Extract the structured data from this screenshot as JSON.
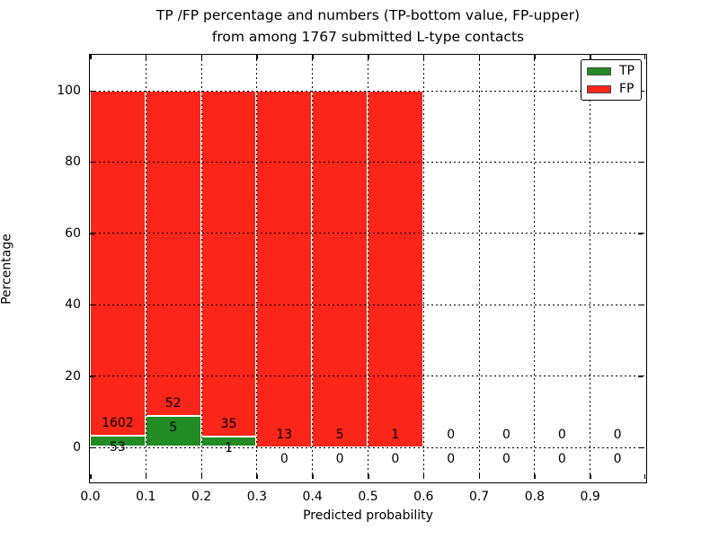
{
  "figure": {
    "title_line1": "TP /FP percentage and numbers (TP-bottom value, FP-upper)",
    "title_line2": "from among 1767 submitted L-type contacts"
  },
  "chart_data": {
    "type": "bar",
    "stacking": "percentage",
    "title": "TP /FP percentage and numbers (TP-bottom value, FP-upper) from among 1767 submitted L-type contacts",
    "xlabel": "Predicted probability",
    "ylabel": "Percentage",
    "total_contacts": 1767,
    "xlim": [
      0.0,
      1.0
    ],
    "ylim": [
      -10,
      110
    ],
    "grid": true,
    "x_ticks": [
      0.0,
      0.1,
      0.2,
      0.3,
      0.4,
      0.5,
      0.6,
      0.7,
      0.8,
      0.9
    ],
    "x_tick_labels": [
      "0.0",
      "0.1",
      "0.2",
      "0.3",
      "0.4",
      "0.5",
      "0.6",
      "0.7",
      "0.8",
      "0.9"
    ],
    "y_ticks": [
      0,
      20,
      40,
      60,
      80,
      100
    ],
    "y_tick_labels": [
      "0",
      "20",
      "40",
      "60",
      "80",
      "100"
    ],
    "bin_width": 0.1,
    "bins": [
      {
        "range": [
          0.0,
          0.1
        ],
        "tp": 53,
        "fp": 1602
      },
      {
        "range": [
          0.1,
          0.2
        ],
        "tp": 5,
        "fp": 52
      },
      {
        "range": [
          0.2,
          0.3
        ],
        "tp": 1,
        "fp": 35
      },
      {
        "range": [
          0.3,
          0.4
        ],
        "tp": 0,
        "fp": 13
      },
      {
        "range": [
          0.4,
          0.5
        ],
        "tp": 0,
        "fp": 5
      },
      {
        "range": [
          0.5,
          0.6
        ],
        "tp": 0,
        "fp": 1
      },
      {
        "range": [
          0.6,
          0.7
        ],
        "tp": 0,
        "fp": 0
      },
      {
        "range": [
          0.7,
          0.8
        ],
        "tp": 0,
        "fp": 0
      },
      {
        "range": [
          0.8,
          0.9
        ],
        "tp": 0,
        "fp": 0
      },
      {
        "range": [
          0.9,
          1.0
        ],
        "tp": 0,
        "fp": 0
      }
    ],
    "legend": {
      "position": "upper right",
      "entries": [
        {
          "label": "TP",
          "color": "#238b23"
        },
        {
          "label": "FP",
          "color": "#fb2519"
        }
      ]
    }
  },
  "colors": {
    "tp": "#238b23",
    "fp": "#fb2519",
    "grid": "#000000",
    "background": "#ffffff",
    "text": "#000000"
  }
}
